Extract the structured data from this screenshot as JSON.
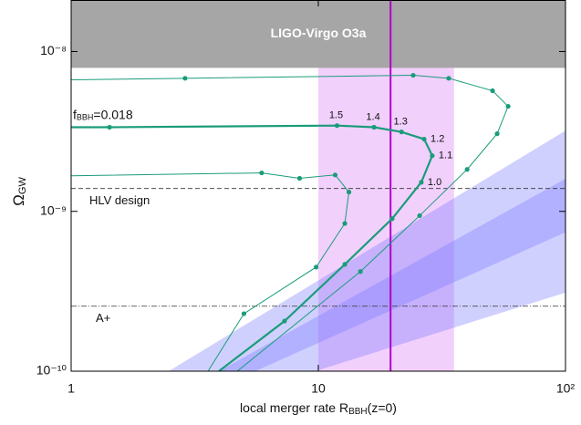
{
  "chart_data": {
    "type": "line",
    "x_label": {
      "main": "local merger rate R",
      "sub": "BBH",
      "rest": "(z=0)"
    },
    "y_label": {
      "main": "Ω",
      "sub": "GW"
    },
    "log_x": true,
    "log_y": true,
    "xlim": [
      1,
      100
    ],
    "ylim": [
      1e-10,
      2.1e-08
    ],
    "xticks": [
      1,
      10,
      {
        "value": 100,
        "label": "10²"
      }
    ],
    "yticks": [
      {
        "value": 1e-10,
        "label": "10⁻¹⁰"
      },
      {
        "value": 1e-09,
        "label": "10⁻⁹"
      },
      {
        "value": 1e-08,
        "label": "10⁻⁸"
      }
    ],
    "exclusion": {
      "ymin": 7.9e-09,
      "label": "LIGO-Virgo O3a",
      "color": "#a6a6a6"
    },
    "vband": {
      "xlim": [
        10,
        35.4
      ],
      "color": "rgba(232,170,250,0.55)"
    },
    "vline": {
      "x": 19.6,
      "color": "#b000c8"
    },
    "bands": [
      {
        "x_upper": [
          2.48,
          100
        ],
        "upper": [
          1e-10,
          3.2e-09
        ],
        "x_lower": [
          5.56,
          100
        ],
        "lower": [
          1e-10,
          7.4e-10
        ],
        "color": "rgba(120,120,255,0.35)"
      },
      {
        "x_upper": [
          3.96,
          100
        ],
        "upper": [
          1e-10,
          1.6e-09
        ],
        "x_lower": [
          9.7,
          100
        ],
        "lower": [
          1e-10,
          3.1e-10
        ],
        "color": "rgba(120,120,255,0.35)"
      }
    ],
    "hlines": [
      {
        "y": 1.39e-09,
        "label": "HLV design",
        "dash": "5,3"
      },
      {
        "y": 2.55e-10,
        "label": "A+",
        "dash": "6,2,1,2"
      }
    ],
    "series": [
      {
        "color": "#1a9c7a",
        "width": 1,
        "x": [
          1,
          2.89,
          24.2,
          33.7,
          50.7,
          58.6,
          52.9,
          40.0,
          25.7,
          14.8,
          4.7
        ],
        "values": [
          6.65e-09,
          6.8e-09,
          7.1e-09,
          6.8e-09,
          5.68e-09,
          4.54e-09,
          3.06e-09,
          1.83e-09,
          9.4e-10,
          4.2e-10,
          1e-10
        ]
      },
      {
        "color": "#1a9c7a",
        "width": 2.2,
        "annotation": {
          "main": "f",
          "sub": "BBH",
          "rest": "=0.018"
        },
        "x": [
          1,
          1.43,
          11.9,
          16.8,
          21.7,
          26.8,
          28.9,
          26.1,
          19.9,
          12.8,
          7.3,
          3.96
        ],
        "values": [
          3.36e-09,
          3.36e-09,
          3.44e-09,
          3.36e-09,
          3.14e-09,
          2.83e-09,
          2.23e-09,
          1.52e-09,
          9e-10,
          4.66e-10,
          2.06e-10,
          1e-10
        ],
        "point_labels": [
          null,
          null,
          "1.5",
          "1.4",
          "1.3",
          "1.2",
          "1.1",
          "1.0",
          null,
          null,
          null,
          null
        ]
      },
      {
        "color": "#1a9c7a",
        "width": 1,
        "x": [
          1,
          5.9,
          8.4,
          11.7,
          13.3,
          12.8,
          9.8,
          5.0,
          3.58
        ],
        "values": [
          1.67e-09,
          1.74e-09,
          1.61e-09,
          1.69e-09,
          1.32e-09,
          8.4e-10,
          4.48e-10,
          2.29e-10,
          1e-10
        ]
      }
    ]
  }
}
